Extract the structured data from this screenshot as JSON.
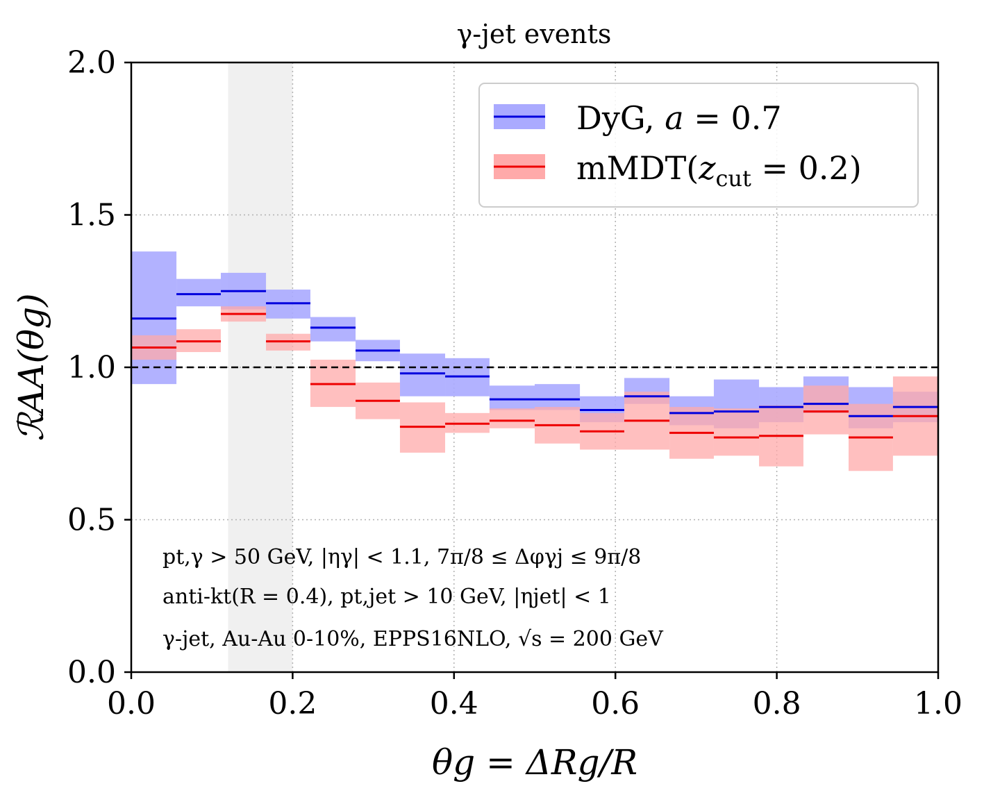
{
  "chart_data": {
    "type": "step-band",
    "title": "γ-jet events",
    "xlabel": "θg = ΔRg/R",
    "ylabel": "ℛAA(θg)",
    "xlim": [
      0.0,
      1.0
    ],
    "ylim": [
      0.0,
      2.0
    ],
    "xticks": [
      0.0,
      0.2,
      0.4,
      0.6,
      0.8,
      1.0
    ],
    "xtick_labels": [
      "0.0",
      "0.2",
      "0.4",
      "0.6",
      "0.8",
      "1.0"
    ],
    "yticks": [
      0.0,
      0.5,
      1.0,
      1.5,
      2.0
    ],
    "ytick_labels": [
      "0.0",
      "0.5",
      "1.0",
      "1.5",
      "2.0"
    ],
    "grid": true,
    "reference_line": 1.0,
    "shaded_region": [
      0.12,
      0.2
    ],
    "legend_position": "top-right",
    "bin_edges": [
      0.0,
      0.056,
      0.111,
      0.167,
      0.222,
      0.278,
      0.333,
      0.389,
      0.444,
      0.5,
      0.556,
      0.611,
      0.667,
      0.722,
      0.778,
      0.833,
      0.889,
      0.944,
      1.0
    ],
    "series": [
      {
        "name": "DyG, a = 0.7",
        "color": "#0000dd",
        "band_color": "#aaaaff",
        "values": [
          1.16,
          1.24,
          1.25,
          1.21,
          1.13,
          1.055,
          0.98,
          0.97,
          0.895,
          0.895,
          0.86,
          0.905,
          0.85,
          0.855,
          0.87,
          0.88,
          0.84,
          0.87
        ],
        "lower": [
          0.945,
          1.2,
          1.19,
          1.16,
          1.085,
          1.02,
          0.905,
          0.905,
          0.86,
          0.86,
          0.82,
          0.88,
          0.81,
          0.8,
          0.82,
          0.85,
          0.8,
          0.82
        ],
        "upper": [
          1.38,
          1.29,
          1.31,
          1.255,
          1.165,
          1.09,
          1.045,
          1.03,
          0.94,
          0.945,
          0.905,
          0.965,
          0.905,
          0.96,
          0.935,
          0.97,
          0.935,
          0.92
        ]
      },
      {
        "name": "mMDT(zcut = 0.2)",
        "color": "#ee0000",
        "band_color": "#ffaaaa",
        "values": [
          1.065,
          1.085,
          1.175,
          1.085,
          0.945,
          0.89,
          0.805,
          0.815,
          0.825,
          0.81,
          0.79,
          0.825,
          0.785,
          0.77,
          0.775,
          0.855,
          0.77,
          0.84
        ],
        "lower": [
          1.025,
          1.05,
          1.15,
          1.055,
          0.87,
          0.83,
          0.72,
          0.785,
          0.8,
          0.75,
          0.73,
          0.73,
          0.7,
          0.71,
          0.675,
          0.78,
          0.66,
          0.71
        ],
        "upper": [
          1.105,
          1.125,
          1.2,
          1.11,
          1.025,
          0.95,
          0.885,
          0.85,
          0.865,
          0.87,
          0.85,
          0.92,
          0.87,
          0.865,
          0.875,
          0.94,
          0.88,
          0.97
        ]
      }
    ],
    "legend": {
      "entries": [
        {
          "label": "DyG, ",
          "label_italic": "a",
          "label_rest": " = 0.7"
        },
        {
          "label": "mMDT(",
          "label_italic": "z",
          "label_sub": "cut",
          "label_rest": " = 0.2)"
        }
      ]
    },
    "annotations": [
      "pt,γ > 50 GeV, |ηγ| < 1.1, 7π/8 ≤ Δφγj ≤ 9π/8",
      "anti-kt(R = 0.4), pt,jet > 10 GeV, |ηjet| < 1",
      "γ-jet, Au-Au 0-10%, EPPS16NLO, √s = 200 GeV"
    ]
  }
}
